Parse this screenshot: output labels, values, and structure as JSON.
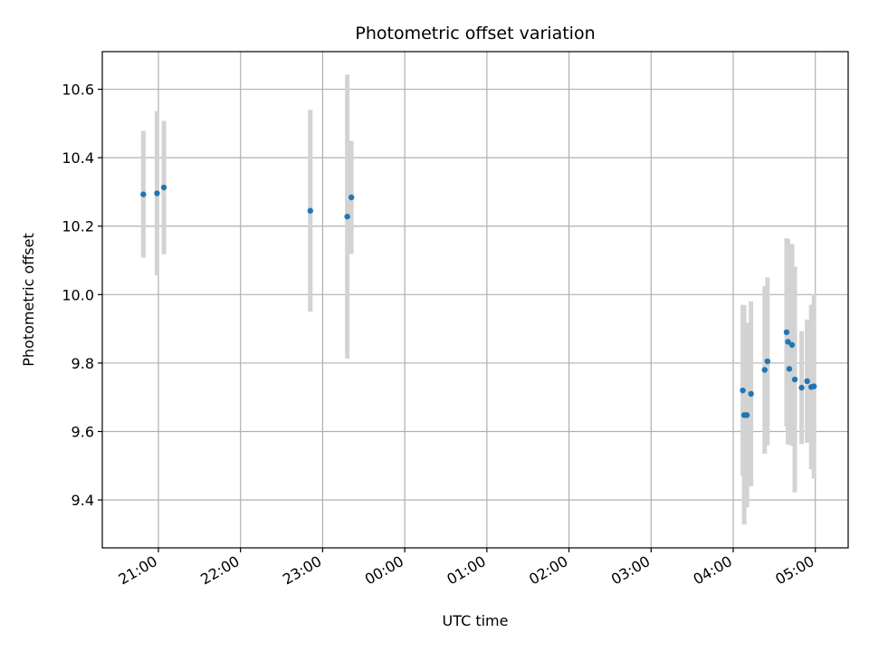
{
  "chart_data": {
    "type": "scatter",
    "title": "Photometric offset variation",
    "xlabel": "UTC time",
    "ylabel": "Photometric offset",
    "x_unit": "UTC clock time; values after 00:00 fall on the following day",
    "x_ticks": [
      "21:00",
      "22:00",
      "23:00",
      "00:00",
      "01:00",
      "02:00",
      "03:00",
      "04:00",
      "05:00"
    ],
    "xlim": [
      "20:19",
      "05:24"
    ],
    "y_ticks": [
      9.4,
      9.6,
      9.8,
      10.0,
      10.2,
      10.4,
      10.6
    ],
    "ylim": [
      9.26,
      10.71
    ],
    "grid": true,
    "legend": false,
    "point_color": "#1f77b4",
    "errorbar_color": "#d3d3d3",
    "points": [
      {
        "x": "20:49",
        "y": 10.293,
        "err": 0.185
      },
      {
        "x": "20:59",
        "y": 10.296,
        "err": 0.24
      },
      {
        "x": "21:04",
        "y": 10.313,
        "err": 0.195
      },
      {
        "x": "22:51",
        "y": 10.245,
        "err": 0.295
      },
      {
        "x": "23:18",
        "y": 10.228,
        "err": 0.415
      },
      {
        "x": "23:21",
        "y": 10.284,
        "err": 0.165
      },
      {
        "x": "04:07",
        "y": 9.72,
        "err": 0.25
      },
      {
        "x": "04:08",
        "y": 9.648,
        "err": 0.32
      },
      {
        "x": "04:10",
        "y": 9.648,
        "err": 0.27
      },
      {
        "x": "04:13",
        "y": 9.71,
        "err": 0.27
      },
      {
        "x": "04:23",
        "y": 9.78,
        "err": 0.245
      },
      {
        "x": "04:25",
        "y": 9.805,
        "err": 0.245
      },
      {
        "x": "04:39",
        "y": 9.89,
        "err": 0.275
      },
      {
        "x": "04:40",
        "y": 9.862,
        "err": 0.3
      },
      {
        "x": "04:41",
        "y": 9.783,
        "err": 0.2
      },
      {
        "x": "04:43",
        "y": 9.853,
        "err": 0.295
      },
      {
        "x": "04:45",
        "y": 9.752,
        "err": 0.33
      },
      {
        "x": "04:50",
        "y": 9.728,
        "err": 0.165
      },
      {
        "x": "04:54",
        "y": 9.747,
        "err": 0.18
      },
      {
        "x": "04:57",
        "y": 9.73,
        "err": 0.24
      },
      {
        "x": "04:59",
        "y": 9.732,
        "err": 0.27
      }
    ]
  }
}
